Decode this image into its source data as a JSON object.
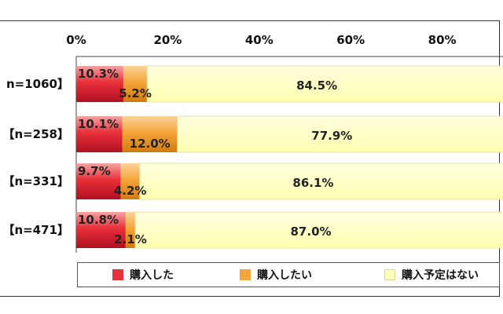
{
  "chart_data": {
    "type": "bar",
    "orientation": "horizontal",
    "stacked": true,
    "categories": [
      "n=1060】",
      "【n=258】",
      "【n=331】",
      "【n=471】"
    ],
    "series": [
      {
        "name": "購入した",
        "values": [
          10.3,
          10.1,
          9.7,
          10.8
        ],
        "labels": [
          "10.3%",
          "10.1%",
          "9.7%",
          "10.8%"
        ],
        "color": "#e8303a"
      },
      {
        "name": "購入したい",
        "values": [
          5.2,
          12.0,
          4.2,
          2.1
        ],
        "labels": [
          "5.2%",
          "12.0%",
          "4.2%",
          "2.1%"
        ],
        "color": "#f4a63a"
      },
      {
        "name": "購入予定はない",
        "values": [
          84.5,
          77.9,
          86.1,
          87.0
        ],
        "labels": [
          "84.5%",
          "77.9%",
          "86.1%",
          "87.0%"
        ],
        "color": "#ffffb8"
      }
    ],
    "xticks": [
      "0%",
      "20%",
      "40%",
      "60%",
      "80%"
    ],
    "xlim": [
      0,
      100
    ],
    "grid": false,
    "legend_position": "bottom"
  }
}
